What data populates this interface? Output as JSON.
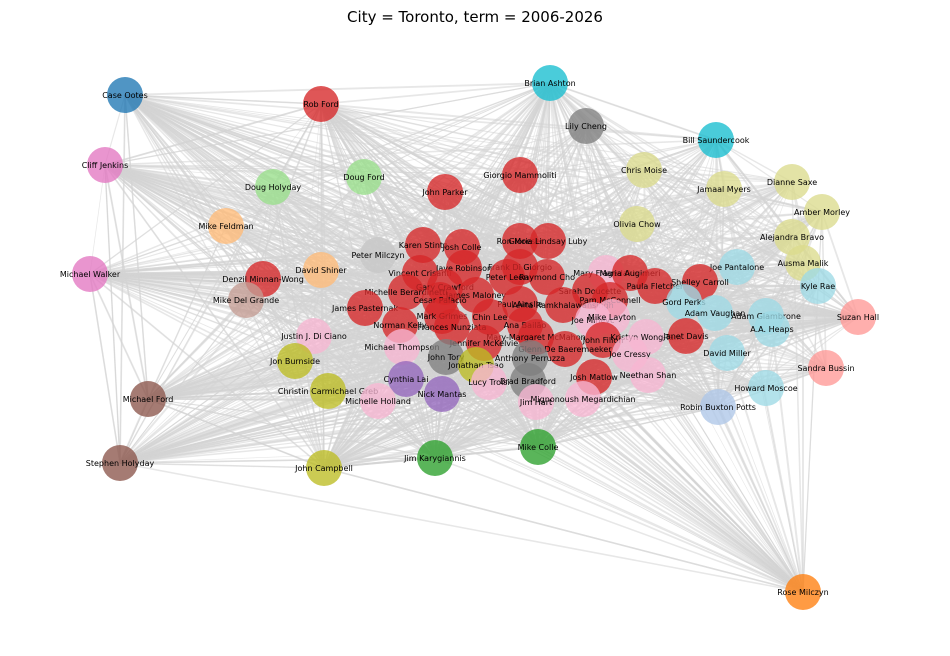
{
  "title": "City = Toronto, term = 2006-2026",
  "palette": {
    "edge": "#d3d3d3",
    "red": "#d62728",
    "pink": "#e377c2",
    "lightpink": "#f7b6d2",
    "blue": "#1f77b4",
    "cyan": "#17becf",
    "lightcyan": "#9edae5",
    "gray": "#7f7f7f",
    "lightgray": "#c7c7c7",
    "green": "#2ca02c",
    "lightgreen": "#98df8a",
    "olive": "#bcbd22",
    "lightolive": "#dbdb8d",
    "orange": "#ff7f0e",
    "lightorange": "#ffbb78",
    "purple": "#9467bd",
    "brown": "#8c564b",
    "lightbrown": "#c49c94",
    "salmon": "#ff9896",
    "lightblue": "#aec7e8"
  },
  "nodes": [
    {
      "label": "Case Ootes",
      "color": "blue"
    },
    {
      "label": "Rob Ford",
      "color": "red"
    },
    {
      "label": "Brian Ashton",
      "color": "cyan"
    },
    {
      "label": "Lily Cheng",
      "color": "gray"
    },
    {
      "label": "Bill Saundercook",
      "color": "cyan"
    },
    {
      "label": "Cliff Jenkins",
      "color": "pink"
    },
    {
      "label": "Doug Holyday",
      "color": "lightgreen"
    },
    {
      "label": "Doug Ford",
      "color": "lightgreen"
    },
    {
      "label": "Giorgio Mammoliti",
      "color": "red"
    },
    {
      "label": "John Parker",
      "color": "red"
    },
    {
      "label": "Chris Moise",
      "color": "lightolive"
    },
    {
      "label": "Jamaal Myers",
      "color": "lightolive"
    },
    {
      "label": "Dianne Saxe",
      "color": "lightolive"
    },
    {
      "label": "Amber Morley",
      "color": "lightolive"
    },
    {
      "label": "Mike Feldman",
      "color": "lightorange"
    },
    {
      "label": "Olivia Chow",
      "color": "lightolive"
    },
    {
      "label": "Alejandra Bravo",
      "color": "lightolive"
    },
    {
      "label": "Ausma Malik",
      "color": "lightolive"
    },
    {
      "label": "Michael Walker",
      "color": "pink"
    },
    {
      "label": "Denzil Minnan-Wong",
      "color": "red"
    },
    {
      "label": "David Shiner",
      "color": "lightorange"
    },
    {
      "label": "Peter Milczyn",
      "color": "lightgray"
    },
    {
      "label": "Karen Stintz",
      "color": "red"
    },
    {
      "label": "Josh Colle",
      "color": "red"
    },
    {
      "label": "Ron Moeser",
      "color": "red"
    },
    {
      "label": "Gloria Lindsay Luby",
      "color": "red"
    },
    {
      "label": "Joe Pantalone",
      "color": "lightcyan"
    },
    {
      "label": "Kyle Rae",
      "color": "lightcyan"
    },
    {
      "label": "Mike Del Grande",
      "color": "lightbrown"
    },
    {
      "label": "Vincent Crisanti",
      "color": "red"
    },
    {
      "label": "Jaye Robinson",
      "color": "red"
    },
    {
      "label": "Frank Di Giorgio",
      "color": "red"
    },
    {
      "label": "Peter Leon",
      "color": "red"
    },
    {
      "label": "Raymond Cho",
      "color": "red"
    },
    {
      "label": "Mary Fragedakis",
      "color": "lightpink"
    },
    {
      "label": "Maria Augimeri",
      "color": "red"
    },
    {
      "label": "Shelley Carroll",
      "color": "red"
    },
    {
      "label": "Gary Crawford",
      "color": "red"
    },
    {
      "label": "Michelle Berardinetti",
      "color": "red"
    },
    {
      "label": "James Maloney",
      "color": "red"
    },
    {
      "label": "Cesar Palacio",
      "color": "red"
    },
    {
      "label": "Paul Ainslie",
      "color": "red"
    },
    {
      "label": "Sarah Doucette",
      "color": "red"
    },
    {
      "label": "Pam McConnell",
      "color": "red"
    },
    {
      "label": "Paula Fletcher",
      "color": "red"
    },
    {
      "label": "Gord Perks",
      "color": "lightcyan"
    },
    {
      "label": "Adam Vaughan",
      "color": "lightcyan"
    },
    {
      "label": "Adam Giambrone",
      "color": "lightcyan"
    },
    {
      "label": "A.A. Heaps",
      "color": "lightcyan"
    },
    {
      "label": "Suzan Hall",
      "color": "salmon"
    },
    {
      "label": "James Pasternak",
      "color": "red"
    },
    {
      "label": "Anita Ramkhalawansingh",
      "color": "red"
    },
    {
      "label": "Mark Grimes",
      "color": "red"
    },
    {
      "label": "Chin Lee",
      "color": "red"
    },
    {
      "label": "Norman Kelly",
      "color": "red"
    },
    {
      "label": "Frances Nunziata",
      "color": "red"
    },
    {
      "label": "Ana Bailão",
      "color": "red"
    },
    {
      "label": "Joe Mihevc",
      "color": "lightpink"
    },
    {
      "label": "Mike Layton",
      "color": "lightpink"
    },
    {
      "label": "Justin J. Di Ciano",
      "color": "lightpink"
    },
    {
      "label": "Mary-Margaret McMahon",
      "color": "red"
    },
    {
      "label": "John Filion",
      "color": "red"
    },
    {
      "label": "Kristyn Wong-Tam",
      "color": "lightpink"
    },
    {
      "label": "Janet Davis",
      "color": "red"
    },
    {
      "label": "Jennifer McKelvie",
      "color": "red"
    },
    {
      "label": "Glenn De Baeremaeker",
      "color": "red"
    },
    {
      "label": "Joe Cressy",
      "color": "lightpink"
    },
    {
      "label": "David Miller",
      "color": "lightcyan"
    },
    {
      "label": "Michael Thompson",
      "color": "lightpink"
    },
    {
      "label": "John Tory",
      "color": "gray"
    },
    {
      "label": "Anthony Perruzza",
      "color": "gray"
    },
    {
      "label": "Jon Burnside",
      "color": "olive"
    },
    {
      "label": "Jonathan Tsao",
      "color": "olive"
    },
    {
      "label": "Sandra Bussin",
      "color": "salmon"
    },
    {
      "label": "Neethan Shan",
      "color": "lightpink"
    },
    {
      "label": "Josh Matlow",
      "color": "red"
    },
    {
      "label": "Cynthia Lai",
      "color": "purple"
    },
    {
      "label": "Lucy Troisi",
      "color": "lightpink"
    },
    {
      "label": "Brad Bradford",
      "color": "gray"
    },
    {
      "label": "Howard Moscoe",
      "color": "lightcyan"
    },
    {
      "label": "Christin Carmichael Greb",
      "color": "olive"
    },
    {
      "label": "Michael Ford",
      "color": "brown"
    },
    {
      "label": "Michelle Holland",
      "color": "lightpink"
    },
    {
      "label": "Nick Mantas",
      "color": "purple"
    },
    {
      "label": "Jim Hart",
      "color": "lightpink"
    },
    {
      "label": "Mignonoush Megardichian",
      "color": "lightpink"
    },
    {
      "label": "Robin Buxton Potts",
      "color": "lightblue"
    },
    {
      "label": "Jim Karygiannis",
      "color": "green"
    },
    {
      "label": "Mike Colle",
      "color": "green"
    },
    {
      "label": "Stephen Holyday",
      "color": "brown"
    },
    {
      "label": "John Campbell",
      "color": "olive"
    },
    {
      "label": "Rose Milczyn",
      "color": "orange"
    }
  ]
}
